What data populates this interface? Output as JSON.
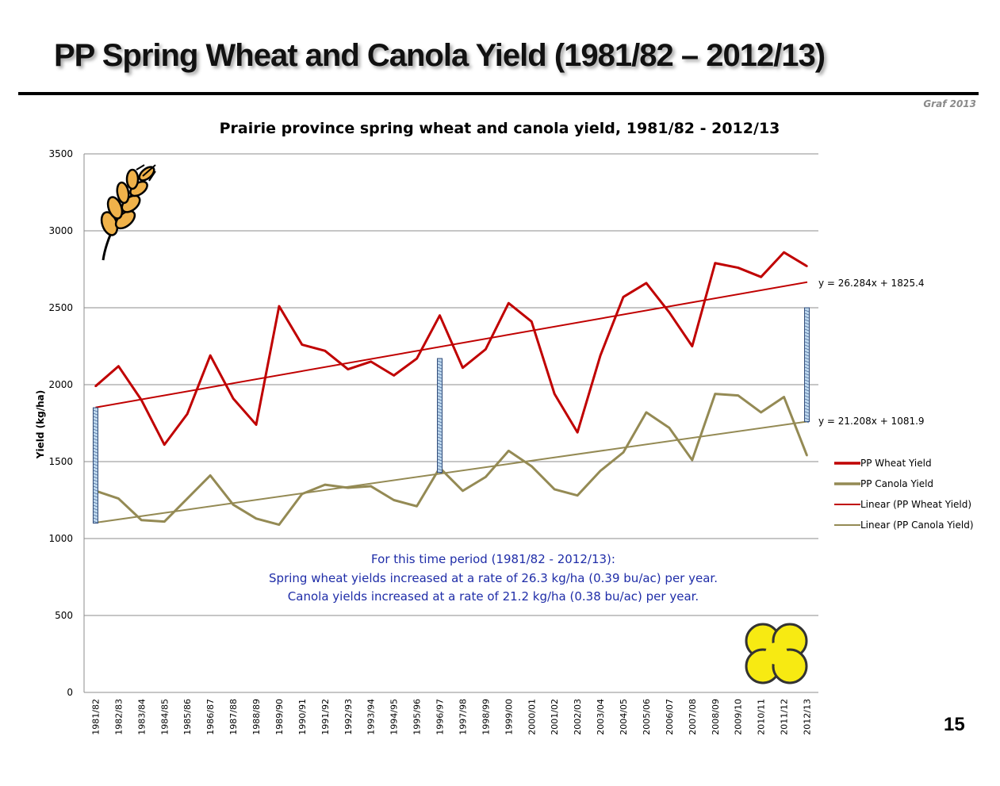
{
  "slide": {
    "title": "PP Spring Wheat and Canola Yield (1981/82 – 2012/13)",
    "credit": "Graf 2013",
    "page_number": "15"
  },
  "chart_data": {
    "type": "line",
    "title": "Prairie province spring wheat and canola yield, 1981/82 - 2012/13",
    "xlabel": "",
    "ylabel": "Yield (kg/ha)",
    "ylim": [
      0,
      3500
    ],
    "yticks": [
      0,
      500,
      1000,
      1500,
      2000,
      2500,
      3000,
      3500
    ],
    "grid": true,
    "legend_position": "right",
    "categories": [
      "1981/82",
      "1982/83",
      "1983/84",
      "1984/85",
      "1985/86",
      "1986/87",
      "1987/88",
      "1988/89",
      "1989/90",
      "1990/91",
      "1991/92",
      "1992/93",
      "1993/94",
      "1994/95",
      "1995/96",
      "1996/97",
      "1997/98",
      "1998/99",
      "1999/00",
      "2000/01",
      "2001/02",
      "2002/03",
      "2003/04",
      "2004/05",
      "2005/06",
      "2006/07",
      "2007/08",
      "2008/09",
      "2009/10",
      "2010/11",
      "2011/12",
      "2012/13"
    ],
    "series": [
      {
        "name": "PP Wheat Yield",
        "color": "#C00000",
        "values": [
          1990,
          2120,
          1900,
          1610,
          1810,
          2190,
          1910,
          1740,
          2510,
          2260,
          2220,
          2100,
          2150,
          2060,
          2170,
          2450,
          2110,
          2230,
          2530,
          2410,
          1940,
          1690,
          2190,
          2570,
          2660,
          2470,
          2250,
          2790,
          2760,
          2700,
          2860,
          2770
        ]
      },
      {
        "name": "PP Canola Yield",
        "color": "#948A54",
        "values": [
          1310,
          1260,
          1120,
          1110,
          1260,
          1410,
          1220,
          1130,
          1090,
          1290,
          1350,
          1330,
          1340,
          1250,
          1210,
          1460,
          1310,
          1400,
          1570,
          1470,
          1320,
          1280,
          1440,
          1560,
          1820,
          1720,
          1510,
          1940,
          1930,
          1820,
          1920,
          1540
        ]
      },
      {
        "name": "Linear (PP Wheat Yield)",
        "color": "#C00000",
        "trend": {
          "slope": 26.284,
          "intercept": 1825.4
        }
      },
      {
        "name": "Linear (PP Canola Yield)",
        "color": "#948A54",
        "trend": {
          "slope": 21.208,
          "intercept": 1081.9
        }
      }
    ],
    "annotations": {
      "wheat_equation": "y = 26.284x + 1825.4",
      "canola_equation": "y = 21.208x + 1081.9",
      "summary_lines": [
        "For this time period (1981/82 - 2012/13):",
        "Spring wheat yields increased at a rate of 26.3 kg/ha (0.39 bu/ac) per year.",
        "Canola yields increased at a rate of 21.2 kg/ha (0.38 bu/ac) per year."
      ],
      "summary_color": "#1F2DA8",
      "gap_bars": [
        {
          "category": "1981/82",
          "low": 1100,
          "high": 1850
        },
        {
          "category": "1996/97",
          "low": 1430,
          "high": 2170
        },
        {
          "category": "2012/13",
          "low": 1760,
          "high": 2500
        }
      ]
    },
    "icons": [
      "wheat-icon",
      "canola-flower-icon"
    ]
  }
}
